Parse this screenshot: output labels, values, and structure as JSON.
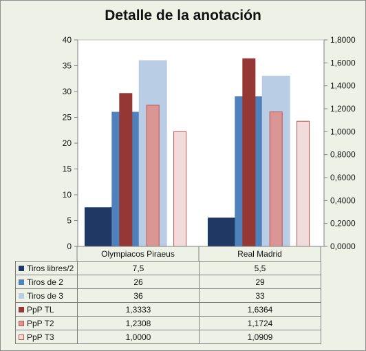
{
  "chart_data": {
    "type": "bar",
    "title": "Detalle de la anotación",
    "categories": [
      "Olympiacos Piraeus",
      "Real Madrid"
    ],
    "y_left": {
      "lim": [
        0,
        40
      ],
      "ticks": [
        "0",
        "5",
        "10",
        "15",
        "20",
        "25",
        "30",
        "35",
        "40"
      ]
    },
    "y_right": {
      "lim": [
        0,
        1.8
      ],
      "ticks": [
        "0,0000",
        "0,2000",
        "0,4000",
        "0,6000",
        "0,8000",
        "1,0000",
        "1,2000",
        "1,4000",
        "1,6000",
        "1,8000"
      ]
    },
    "grid": false,
    "legend": "data table below",
    "series": [
      {
        "name": "Tiros libres/2",
        "axis": "left",
        "values": [
          7.5,
          5.5
        ],
        "labels": [
          "7,5",
          "5,5"
        ],
        "color": "#1f3864",
        "border": "#1f3864"
      },
      {
        "name": "Tiros de 2",
        "axis": "left",
        "values": [
          26,
          29
        ],
        "labels": [
          "26",
          "29"
        ],
        "color": "#4f81bd",
        "border": "#4f81bd"
      },
      {
        "name": "Tiros de 3",
        "axis": "left",
        "values": [
          36,
          33
        ],
        "labels": [
          "36",
          "33"
        ],
        "color": "#b9cde5",
        "border": "#b9cde5"
      },
      {
        "name": "PpP TL",
        "axis": "right",
        "values": [
          1.3333,
          1.6364
        ],
        "labels": [
          "1,3333",
          "1,6364"
        ],
        "color": "#953735",
        "border": "#953735"
      },
      {
        "name": "PpP T2",
        "axis": "right",
        "values": [
          1.2308,
          1.1724
        ],
        "labels": [
          "1,2308",
          "1,1724"
        ],
        "color": "#d99694",
        "border": "#c0504d"
      },
      {
        "name": "PpP T3",
        "axis": "right",
        "values": [
          1.0,
          1.0909
        ],
        "labels": [
          "1,0000",
          "1,0909"
        ],
        "color": "#f2dcdb",
        "border": "#c0504d"
      }
    ]
  }
}
